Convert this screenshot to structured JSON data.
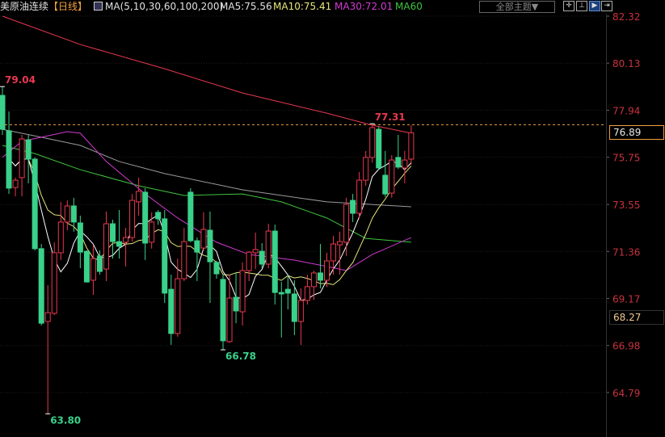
{
  "header": {
    "symbol": "美原油连续",
    "period": "【日线】",
    "ma_params": "MA(5,10,30,60,100,200)",
    "ma5": "MA5:75.56",
    "ma10": "MA10:75.41",
    "ma30": "MA30:72.01",
    "ma60": "MA60",
    "theme_button": "全部主题▼",
    "tools": [
      "crosshair-icon",
      "range-icon",
      "play-icon",
      "exit-icon"
    ]
  },
  "colors": {
    "up": "#e8394f",
    "down": "#3ad18a",
    "ma5": "#ffffff",
    "ma10": "#e6e67a",
    "ma30": "#d23ad2",
    "ma60": "#3fc43f",
    "ma100": "#9a9a9a",
    "ma200": "#e8394f",
    "axis_text": "#c8323e",
    "last_price": "#f0a040"
  },
  "chart_data": {
    "type": "candlestick",
    "ylim": [
      63.2,
      82.8
    ],
    "y_ticks": [
      "82.32",
      "80.13",
      "77.94",
      "75.75",
      "73.55",
      "71.36",
      "69.17",
      "66.98",
      "64.79"
    ],
    "grid": true,
    "last_price": "76.89",
    "cursor_price": "68.27",
    "annotations": [
      {
        "text": "79.04",
        "index": 0,
        "value": 79.04,
        "kind": "high"
      },
      {
        "text": "77.31",
        "index": 57,
        "value": 77.31,
        "kind": "high"
      },
      {
        "text": "66.78",
        "index": 34,
        "value": 66.78,
        "kind": "low"
      },
      {
        "text": "63.80",
        "index": 7,
        "value": 63.8,
        "kind": "low"
      }
    ],
    "ohlc": [
      [
        78.63,
        79.04,
        76.79,
        77.05
      ],
      [
        76.98,
        77.88,
        74.04,
        74.31
      ],
      [
        74.34,
        74.8,
        73.93,
        74.68
      ],
      [
        74.8,
        76.79,
        73.93,
        76.6
      ],
      [
        76.56,
        76.79,
        74.53,
        75.66
      ],
      [
        75.66,
        75.74,
        71.41,
        71.49
      ],
      [
        71.49,
        71.71,
        67.91,
        68.02
      ],
      [
        68.1,
        69.79,
        63.8,
        68.51
      ],
      [
        68.48,
        71.79,
        68.4,
        71.3
      ],
      [
        71.3,
        73.67,
        70.96,
        72.73
      ],
      [
        72.73,
        73.74,
        72.35,
        73.48
      ],
      [
        73.48,
        73.86,
        72.28,
        72.73
      ],
      [
        72.69,
        73.03,
        70.58,
        71.33
      ],
      [
        71.37,
        71.41,
        69.91,
        69.94
      ],
      [
        70.02,
        71.67,
        69.34,
        71.03
      ],
      [
        71.15,
        71.41,
        70.28,
        70.43
      ],
      [
        70.54,
        73.22,
        69.98,
        72.65
      ],
      [
        72.65,
        72.84,
        71.03,
        71.82
      ],
      [
        71.82,
        73.29,
        71.03,
        71.6
      ],
      [
        71.79,
        72.46,
        70.66,
        72.01
      ],
      [
        72.01,
        74.04,
        71.82,
        73.74
      ],
      [
        73.67,
        74.8,
        73.03,
        74.16
      ],
      [
        74.12,
        74.31,
        70.96,
        71.75
      ],
      [
        71.79,
        73.18,
        71.49,
        72.73
      ],
      [
        73.18,
        73.29,
        72.6,
        72.88
      ],
      [
        72.88,
        73.29,
        68.96,
        69.42
      ],
      [
        69.6,
        70.28,
        67.01,
        67.54
      ],
      [
        67.54,
        71.03,
        67.39,
        70.09
      ],
      [
        70.09,
        72.46,
        69.98,
        71.82
      ],
      [
        74.12,
        74.31,
        71.79,
        71.86
      ],
      [
        71.86,
        72.01,
        69.98,
        71.33
      ],
      [
        71.52,
        73.18,
        71.41,
        72.39
      ],
      [
        72.35,
        73.22,
        68.96,
        70.88
      ],
      [
        70.85,
        70.92,
        70.09,
        70.32
      ],
      [
        70.06,
        70.28,
        66.78,
        67.2
      ],
      [
        67.16,
        70.28,
        67.1,
        69.19
      ],
      [
        69.23,
        70.39,
        68.02,
        68.59
      ],
      [
        68.55,
        70.85,
        67.91,
        70.47
      ],
      [
        70.47,
        71.37,
        69.98,
        71.33
      ],
      [
        71.3,
        72.24,
        70.54,
        71.45
      ],
      [
        71.37,
        71.75,
        70.58,
        70.77
      ],
      [
        70.77,
        72.65,
        70.58,
        72.31
      ],
      [
        72.31,
        72.61,
        68.89,
        69.45
      ],
      [
        69.45,
        69.94,
        67.35,
        69.38
      ],
      [
        69.6,
        70.28,
        68.66,
        69.42
      ],
      [
        69.38,
        70.02,
        67.46,
        68.1
      ],
      [
        68.1,
        69.64,
        67.01,
        69.08
      ],
      [
        69.08,
        70.28,
        68.89,
        69.72
      ],
      [
        69.72,
        70.47,
        69.1,
        70.36
      ],
      [
        70.36,
        71.71,
        69.64,
        70.02
      ],
      [
        70.02,
        71.3,
        69.7,
        70.92
      ],
      [
        70.92,
        72.09,
        70.28,
        71.71
      ],
      [
        71.67,
        72.28,
        70.28,
        71.82
      ],
      [
        71.79,
        73.86,
        71.15,
        73.55
      ],
      [
        73.74,
        74.04,
        72.73,
        73.14
      ],
      [
        73.14,
        75.06,
        72.9,
        74.68
      ],
      [
        74.68,
        76.04,
        74.42,
        75.74
      ],
      [
        75.74,
        77.31,
        75.5,
        77.13
      ],
      [
        77.05,
        77.17,
        75.17,
        75.25
      ],
      [
        74.91,
        76.04,
        73.9,
        74.04
      ],
      [
        74.08,
        75.85,
        73.86,
        75.62
      ],
      [
        75.74,
        76.79,
        75.2,
        75.29
      ],
      [
        75.25,
        76.04,
        74.53,
        75.62
      ],
      [
        75.66,
        77.24,
        75.4,
        76.89
      ]
    ],
    "ma_lines": {
      "ma200": [
        [
          0,
          82.32
        ],
        [
          12,
          81.0
        ],
        [
          25,
          79.87
        ],
        [
          37,
          78.74
        ],
        [
          50,
          77.8
        ],
        [
          57,
          77.24
        ],
        [
          63,
          76.87
        ]
      ],
      "ma100": [
        [
          0,
          77.05
        ],
        [
          6,
          76.68
        ],
        [
          12,
          76.3
        ],
        [
          18,
          75.55
        ],
        [
          25,
          74.99
        ],
        [
          37,
          74.23
        ],
        [
          50,
          73.67
        ],
        [
          63,
          73.44
        ]
      ],
      "ma60": [
        [
          0,
          76.3
        ],
        [
          5,
          75.92
        ],
        [
          12,
          75.17
        ],
        [
          21,
          74.42
        ],
        [
          28,
          73.97
        ],
        [
          37,
          74.04
        ],
        [
          43,
          73.67
        ],
        [
          50,
          72.92
        ],
        [
          56,
          71.97
        ],
        [
          63,
          71.79
        ]
      ],
      "ma30": [
        [
          0,
          75.74
        ],
        [
          3,
          76.49
        ],
        [
          10,
          76.94
        ],
        [
          12,
          76.87
        ],
        [
          16,
          75.55
        ],
        [
          22,
          74.04
        ],
        [
          27,
          72.92
        ],
        [
          33,
          71.79
        ],
        [
          38,
          71.22
        ],
        [
          45,
          70.96
        ],
        [
          50,
          70.66
        ],
        [
          53,
          70.47
        ],
        [
          57,
          71.22
        ],
        [
          63,
          72.01
        ]
      ]
    }
  }
}
